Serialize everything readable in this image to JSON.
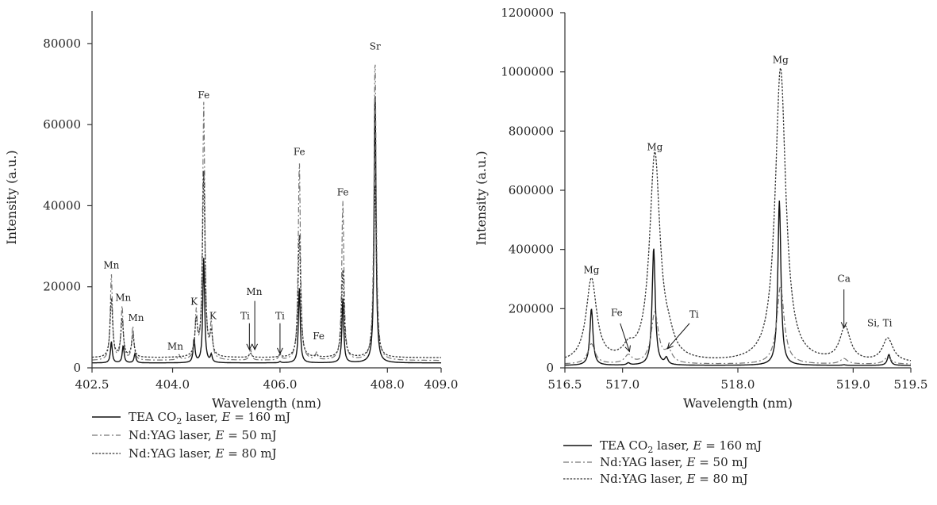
{
  "chart_data": [
    {
      "type": "line",
      "xlabel": "Wavelength (nm)",
      "ylabel": "Intensity (a.u.)",
      "xlim": [
        402.5,
        409.0
      ],
      "ylim": [
        0,
        88000
      ],
      "xticks": [
        402.5,
        404.0,
        406.0,
        408.0,
        409.0
      ],
      "xtick_labels": [
        "402.5",
        "404.0",
        "406.0",
        "408.0",
        "409.0"
      ],
      "yticks": [
        0,
        20000,
        40000,
        60000,
        80000
      ],
      "ytick_labels": [
        "0",
        "20000",
        "40000",
        "60000",
        "80000"
      ],
      "grid": false,
      "legend_position": "bottom",
      "baseline": {
        "tea": 1200,
        "yag50": 1800,
        "yag80": 2500
      },
      "series": [
        {
          "name": "TEA CO2 laser, E = 160 mJ",
          "legend": {
            "prefix": "TEA CO",
            "sub": "2",
            "mid": " laser, ",
            "var": "E",
            "suffix": " = 160 mJ"
          },
          "style": "solid",
          "peaks": [
            {
              "x": 402.86,
              "y": 6500
            },
            {
              "x": 403.08,
              "y": 5500
            },
            {
              "x": 403.3,
              "y": 3500
            },
            {
              "x": 404.4,
              "y": 7000
            },
            {
              "x": 404.58,
              "y": 27000
            },
            {
              "x": 404.72,
              "y": 3000
            },
            {
              "x": 405.45,
              "y": 1200
            },
            {
              "x": 406.0,
              "y": 1500
            },
            {
              "x": 406.36,
              "y": 20000
            },
            {
              "x": 407.17,
              "y": 17000
            },
            {
              "x": 407.77,
              "y": 70000
            }
          ]
        },
        {
          "name": "Nd:YAG laser, E = 50 mJ",
          "legend": {
            "prefix": "Nd:YAG laser, ",
            "sub": "",
            "mid": "",
            "var": "E",
            "suffix": " = 50 mJ"
          },
          "style": "dashdot",
          "peaks": [
            {
              "x": 402.86,
              "y": 23000
            },
            {
              "x": 403.06,
              "y": 15000
            },
            {
              "x": 403.26,
              "y": 10000
            },
            {
              "x": 404.12,
              "y": 3000
            },
            {
              "x": 404.44,
              "y": 13000
            },
            {
              "x": 404.58,
              "y": 65000
            },
            {
              "x": 404.72,
              "y": 10000
            },
            {
              "x": 405.45,
              "y": 4500
            },
            {
              "x": 406.0,
              "y": 3500
            },
            {
              "x": 406.36,
              "y": 51000
            },
            {
              "x": 406.68,
              "y": 3500
            },
            {
              "x": 407.17,
              "y": 41000
            },
            {
              "x": 407.77,
              "y": 77000
            }
          ]
        },
        {
          "name": "Nd:YAG laser, E = 80 mJ",
          "legend": {
            "prefix": "Nd:YAG laser, ",
            "sub": "",
            "mid": "",
            "var": "E",
            "suffix": " = 80 mJ"
          },
          "style": "dotted",
          "peaks": [
            {
              "x": 402.86,
              "y": 17000
            },
            {
              "x": 403.06,
              "y": 12000
            },
            {
              "x": 403.26,
              "y": 8000
            },
            {
              "x": 404.12,
              "y": 2500
            },
            {
              "x": 404.44,
              "y": 11000
            },
            {
              "x": 404.58,
              "y": 48000
            },
            {
              "x": 404.72,
              "y": 8000
            },
            {
              "x": 405.45,
              "y": 3500
            },
            {
              "x": 406.0,
              "y": 3000
            },
            {
              "x": 406.36,
              "y": 33000
            },
            {
              "x": 406.68,
              "y": 3000
            },
            {
              "x": 407.17,
              "y": 24000
            },
            {
              "x": 407.77,
              "y": 46000
            }
          ]
        }
      ],
      "annotations": [
        {
          "text": "Mn",
          "x": 402.86,
          "y": 24500
        },
        {
          "text": "Mn",
          "x": 403.08,
          "y": 16500
        },
        {
          "text": "Mn",
          "x": 403.32,
          "y": 11500
        },
        {
          "text": "Mn",
          "x": 404.05,
          "y": 4500
        },
        {
          "text": "K",
          "x": 404.4,
          "y": 15500
        },
        {
          "text": "K",
          "x": 404.75,
          "y": 12000
        },
        {
          "text": "Fe",
          "x": 404.58,
          "y": 66500
        },
        {
          "text": "Ti",
          "x": 405.35,
          "y": 12000
        },
        {
          "text": "Mn",
          "x": 405.52,
          "y": 18000
        },
        {
          "text": "Ti",
          "x": 406.0,
          "y": 12000
        },
        {
          "text": "Fe",
          "x": 406.36,
          "y": 52500
        },
        {
          "text": "Fe",
          "x": 406.72,
          "y": 7000
        },
        {
          "text": "Fe",
          "x": 407.17,
          "y": 42500
        },
        {
          "text": "Sr",
          "x": 407.77,
          "y": 78500
        }
      ],
      "arrows": [
        {
          "x": 405.43,
          "y_from": 11000,
          "y_to": 4500
        },
        {
          "x": 405.53,
          "y_from": 16500,
          "y_to": 4500
        },
        {
          "x": 406.0,
          "y_from": 11000,
          "y_to": 3500
        }
      ]
    },
    {
      "type": "line",
      "xlabel": "Wavelength (nm)",
      "ylabel": "Intensity (a.u.)",
      "xlim": [
        516.5,
        519.5
      ],
      "ylim": [
        0,
        1200000
      ],
      "xticks": [
        516.5,
        517.0,
        518.0,
        519.0,
        519.5
      ],
      "xtick_labels": [
        "516.5",
        "517.0",
        "518.0",
        "519.0",
        "519.5"
      ],
      "yticks": [
        0,
        200000,
        400000,
        600000,
        800000,
        1000000,
        1200000
      ],
      "ytick_labels": [
        "0",
        "200000",
        "400000",
        "600000",
        "800000",
        "1000000",
        "1200000"
      ],
      "grid": false,
      "legend_position": "bottom",
      "baseline": {
        "tea": 8000,
        "yag50": 12000,
        "yag80": 15000
      },
      "series": [
        {
          "name": "TEA CO2 laser, E = 160 mJ",
          "legend": {
            "prefix": "TEA CO",
            "sub": "2",
            "mid": " laser, ",
            "var": "E",
            "suffix": " = 160 mJ"
          },
          "style": "solid",
          "peaks": [
            {
              "x": 516.73,
              "y": 200000
            },
            {
              "x": 517.05,
              "y": 15000
            },
            {
              "x": 517.27,
              "y": 405000
            },
            {
              "x": 517.38,
              "y": 30000
            },
            {
              "x": 518.36,
              "y": 565000
            },
            {
              "x": 518.92,
              "y": 10000
            },
            {
              "x": 519.31,
              "y": 45000
            }
          ]
        },
        {
          "name": "Nd:YAG laser, E = 50 mJ",
          "legend": {
            "prefix": "Nd:YAG laser, ",
            "sub": "",
            "mid": "",
            "var": "E",
            "suffix": " = 50 mJ"
          },
          "style": "dashdot",
          "peaks": [
            {
              "x": 516.73,
              "y": 80000
            },
            {
              "x": 517.05,
              "y": 40000
            },
            {
              "x": 517.28,
              "y": 185000
            },
            {
              "x": 517.4,
              "y": 50000
            },
            {
              "x": 518.37,
              "y": 275000
            },
            {
              "x": 518.92,
              "y": 30000
            },
            {
              "x": 519.3,
              "y": 35000
            }
          ]
        },
        {
          "name": "Nd:YAG laser, E = 80 mJ",
          "legend": {
            "prefix": "Nd:YAG laser, ",
            "sub": "",
            "mid": "",
            "var": "E",
            "suffix": " = 80 mJ"
          },
          "style": "dotted",
          "peaks": [
            {
              "x": 516.73,
              "y": 295000
            },
            {
              "x": 517.05,
              "y": 50000
            },
            {
              "x": 517.28,
              "y": 715000
            },
            {
              "x": 517.4,
              "y": 60000
            },
            {
              "x": 518.37,
              "y": 1010000
            },
            {
              "x": 518.93,
              "y": 130000
            },
            {
              "x": 519.3,
              "y": 95000
            }
          ]
        }
      ],
      "annotations": [
        {
          "text": "Mg",
          "x": 516.73,
          "y": 320000
        },
        {
          "text": "Fe",
          "x": 516.95,
          "y": 175000
        },
        {
          "text": "Mg",
          "x": 517.28,
          "y": 735000
        },
        {
          "text": "Ti",
          "x": 517.62,
          "y": 170000
        },
        {
          "text": "Mg",
          "x": 518.37,
          "y": 1030000
        },
        {
          "text": "Ca",
          "x": 518.92,
          "y": 290000
        },
        {
          "text": "Si, Ti",
          "x": 519.23,
          "y": 140000
        }
      ],
      "arrows": [
        {
          "x": 516.98,
          "x_to": 517.06,
          "y_from": 150000,
          "y_to": 55000
        },
        {
          "x": 517.58,
          "x_to": 517.39,
          "y_from": 150000,
          "y_to": 65000
        },
        {
          "x": 518.92,
          "y_from": 265000,
          "y_to": 135000
        }
      ]
    }
  ]
}
